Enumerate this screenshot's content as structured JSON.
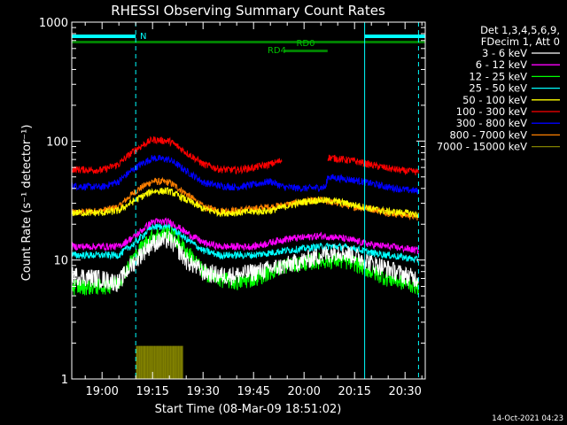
{
  "chart_data": {
    "type": "line",
    "title": "RHESSI Observing Summary Count Rates",
    "xlabel": "Start Time (08-Mar-09 18:51:02)",
    "ylabel": "Count Rate (s⁻¹ detector⁻¹)",
    "yscale": "log",
    "ylim": [
      1,
      1000
    ],
    "xlim_minutes": [
      -9,
      96
    ],
    "y_ticks": [
      "1",
      "10",
      "100",
      "1000"
    ],
    "x_ticks": [
      {
        "label": "19:00",
        "t": 0
      },
      {
        "label": "19:15",
        "t": 15
      },
      {
        "label": "19:30",
        "t": 30
      },
      {
        "label": "19:45",
        "t": 45
      },
      {
        "label": "20:00",
        "t": 60
      },
      {
        "label": "20:15",
        "t": 75
      },
      {
        "label": "20:30",
        "t": 90
      }
    ],
    "grid": false,
    "legend_position": "right",
    "legend_header": [
      "Det 1,3,4,5,6,9,",
      "FDecim 1, Att 0"
    ],
    "timestamp": "14-Oct-2021 04:23",
    "annotations": {
      "night": "N",
      "rd0": "RD0",
      "rd4": "RD4",
      "night_bars": [
        [
          -9,
          10
        ],
        [
          78,
          96
        ]
      ],
      "rd0_bar": [
        -9,
        96
      ],
      "rd4_bar": [
        54,
        67
      ],
      "vertical_lines": [
        10,
        78,
        94
      ]
    },
    "series": [
      {
        "name": "3 - 6 keV",
        "color": "#ffffff",
        "t": [
          -9,
          0,
          5,
          10,
          15,
          20,
          25,
          30,
          35,
          40,
          45,
          50,
          54,
          60,
          65,
          70,
          75,
          80,
          85,
          90,
          94
        ],
        "values": [
          7.5,
          7.0,
          6.5,
          10,
          14,
          15,
          10,
          8,
          7.5,
          7.5,
          8,
          8.5,
          9,
          10,
          11,
          12,
          11,
          9.5,
          8.5,
          7.5,
          7
        ]
      },
      {
        "name": "6 - 12 keV",
        "color": "#ff00ff",
        "t": [
          -9,
          0,
          5,
          10,
          15,
          20,
          25,
          30,
          35,
          40,
          45,
          50,
          54,
          60,
          65,
          70,
          75,
          80,
          85,
          90,
          94
        ],
        "values": [
          13,
          13,
          13,
          16,
          21,
          21,
          17,
          14,
          13,
          13,
          13,
          14,
          15,
          15.5,
          16,
          15.5,
          14.5,
          13.5,
          13,
          12.5,
          12
        ]
      },
      {
        "name": "12 - 25 keV",
        "color": "#00ff00",
        "t": [
          -9,
          0,
          5,
          10,
          15,
          20,
          25,
          30,
          35,
          40,
          45,
          50,
          54,
          60,
          65,
          70,
          75,
          80,
          85,
          90,
          94
        ],
        "values": [
          6,
          6,
          6.5,
          11,
          16,
          17,
          12,
          8,
          7,
          6.5,
          7,
          8,
          9,
          9.5,
          10,
          10,
          9.5,
          8,
          7,
          6.5,
          6
        ]
      },
      {
        "name": "25 - 50 keV",
        "color": "#00ffff",
        "t": [
          -9,
          0,
          5,
          10,
          15,
          20,
          25,
          30,
          35,
          40,
          45,
          50,
          54,
          60,
          65,
          70,
          75,
          80,
          85,
          90,
          94
        ],
        "values": [
          11,
          11,
          11,
          14,
          19,
          19,
          15,
          12,
          11,
          11,
          11,
          11.5,
          12,
          12.5,
          13,
          13,
          12.5,
          11.5,
          11,
          10.5,
          10
        ]
      },
      {
        "name": "50 - 100 keV",
        "color": "#ffff00",
        "t": [
          -9,
          0,
          5,
          10,
          15,
          20,
          25,
          30,
          35,
          40,
          45,
          50,
          54,
          60,
          65,
          70,
          75,
          80,
          85,
          90,
          94
        ],
        "values": [
          25,
          25,
          26,
          32,
          38,
          38,
          32,
          27,
          25,
          25,
          25.5,
          26,
          28,
          31,
          32,
          31,
          29,
          27,
          25.5,
          25,
          24
        ]
      },
      {
        "name": "100 - 300 keV",
        "color": "#ff0000",
        "t": [
          -9,
          0,
          5,
          10,
          15,
          20,
          25,
          30,
          35,
          40,
          45,
          50,
          53.5,
          54,
          66.5,
          67,
          75,
          80,
          85,
          90,
          94
        ],
        "values": [
          58,
          57,
          64,
          85,
          103,
          100,
          80,
          64,
          58,
          57,
          60,
          64,
          69,
          null,
          null,
          73,
          68,
          63,
          59,
          56,
          55
        ]
      },
      {
        "name": "300 - 800 keV",
        "color": "#0000ff",
        "t": [
          -9,
          0,
          5,
          10,
          15,
          20,
          25,
          30,
          35,
          40,
          45,
          50,
          54,
          60,
          66.5,
          67,
          75,
          80,
          85,
          90,
          94
        ],
        "values": [
          42,
          41,
          46,
          60,
          72,
          70,
          56,
          45,
          42,
          41,
          43,
          46,
          41,
          40,
          41,
          50,
          47,
          44,
          41,
          39,
          38
        ]
      },
      {
        "name": "800 - 7000 keV",
        "color": "#ff8000",
        "t": [
          -9,
          0,
          5,
          10,
          15,
          20,
          25,
          30,
          35,
          40,
          45,
          50,
          54,
          60,
          65,
          70,
          75,
          80,
          85,
          90,
          94
        ],
        "values": [
          25,
          26,
          28,
          38,
          46,
          45,
          36,
          28,
          26,
          26,
          27,
          28,
          29,
          31,
          32,
          30,
          28,
          27,
          25,
          24,
          23
        ]
      },
      {
        "name": "7000 - 15000 keV",
        "color": "#808000",
        "t": [
          10,
          11,
          24,
          24.5
        ],
        "values": [
          null,
          1.9,
          1.9,
          null
        ]
      }
    ]
  }
}
